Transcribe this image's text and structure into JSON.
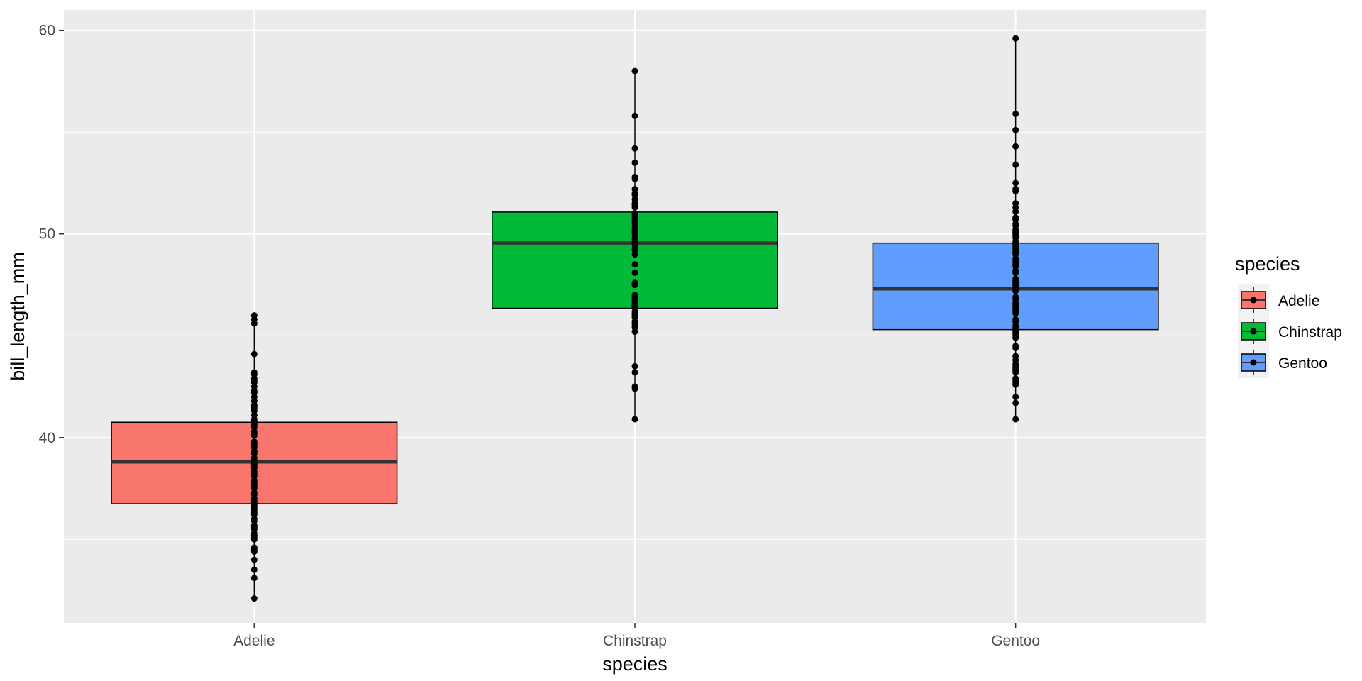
{
  "chart_data": {
    "type": "boxplot",
    "xlabel": "species",
    "ylabel": "bill_length_mm",
    "categories": [
      "Adelie",
      "Chinstrap",
      "Gentoo"
    ],
    "ylim": [
      30.9,
      61.0
    ],
    "y_ticks": [
      40,
      50,
      60
    ],
    "y_minor_ticks": [
      35,
      45,
      55
    ],
    "grid": true,
    "legend": {
      "title": "species",
      "position": "right",
      "entries": [
        "Adelie",
        "Chinstrap",
        "Gentoo"
      ]
    },
    "colors": {
      "Adelie": "#F8766D",
      "Chinstrap": "#00BA38",
      "Gentoo": "#619CFF",
      "panel_background": "#EBEBEB",
      "grid": "#FFFFFF",
      "points": "#000000",
      "median": "#333333"
    },
    "series": [
      {
        "category": "Adelie",
        "q1": 36.75,
        "median": 38.8,
        "q3": 40.75,
        "whisker_low": 32.1,
        "whisker_high": 46.0,
        "points": [
          32.1,
          33.1,
          33.5,
          34.0,
          34.4,
          34.5,
          34.6,
          35.0,
          35.1,
          35.2,
          35.3,
          35.5,
          35.6,
          35.7,
          35.9,
          36.0,
          36.2,
          36.3,
          36.4,
          36.5,
          36.6,
          36.7,
          36.8,
          36.9,
          37.0,
          37.2,
          37.3,
          37.5,
          37.6,
          37.7,
          37.8,
          37.9,
          38.1,
          38.2,
          38.3,
          38.5,
          38.6,
          38.7,
          38.8,
          38.9,
          39.0,
          39.2,
          39.3,
          39.5,
          39.6,
          39.7,
          39.8,
          40.1,
          40.2,
          40.3,
          40.5,
          40.6,
          40.7,
          40.8,
          40.9,
          41.1,
          41.3,
          41.4,
          41.5,
          41.6,
          41.8,
          42.0,
          42.2,
          42.3,
          42.5,
          42.7,
          42.8,
          42.9,
          43.1,
          43.2,
          44.1,
          45.6,
          45.8,
          46.0
        ]
      },
      {
        "category": "Chinstrap",
        "q1": 46.35,
        "median": 49.55,
        "q3": 51.075,
        "whisker_low": 40.9,
        "whisker_high": 58.0,
        "points": [
          40.9,
          42.4,
          42.5,
          43.2,
          43.5,
          45.2,
          45.4,
          45.5,
          45.6,
          45.7,
          45.9,
          46.0,
          46.1,
          46.2,
          46.4,
          46.5,
          46.6,
          46.7,
          46.8,
          46.9,
          47.0,
          47.5,
          47.6,
          48.1,
          48.5,
          49.0,
          49.2,
          49.3,
          49.5,
          49.6,
          49.7,
          49.8,
          50.0,
          50.1,
          50.2,
          50.3,
          50.5,
          50.6,
          50.7,
          50.8,
          50.9,
          51.0,
          51.3,
          51.4,
          51.5,
          51.7,
          51.9,
          52.0,
          52.2,
          52.7,
          52.8,
          53.5,
          54.2,
          55.8,
          58.0
        ]
      },
      {
        "category": "Gentoo",
        "q1": 45.3,
        "median": 47.3,
        "q3": 49.55,
        "whisker_low": 40.9,
        "whisker_high": 59.6,
        "points": [
          40.9,
          41.7,
          42.0,
          42.6,
          42.7,
          42.8,
          42.9,
          43.2,
          43.3,
          43.4,
          43.5,
          43.6,
          43.8,
          44.0,
          44.4,
          44.5,
          44.9,
          45.0,
          45.1,
          45.2,
          45.3,
          45.4,
          45.5,
          45.7,
          45.8,
          46.1,
          46.2,
          46.3,
          46.4,
          46.5,
          46.6,
          46.8,
          46.9,
          47.2,
          47.3,
          47.4,
          47.5,
          47.6,
          47.7,
          47.8,
          48.1,
          48.2,
          48.4,
          48.5,
          48.6,
          48.7,
          48.8,
          49.0,
          49.1,
          49.2,
          49.3,
          49.4,
          49.5,
          49.6,
          49.8,
          49.9,
          50.0,
          50.1,
          50.2,
          50.4,
          50.5,
          50.7,
          50.8,
          51.1,
          51.3,
          51.5,
          52.1,
          52.2,
          52.5,
          53.4,
          54.3,
          55.1,
          55.9,
          59.6
        ]
      }
    ]
  }
}
